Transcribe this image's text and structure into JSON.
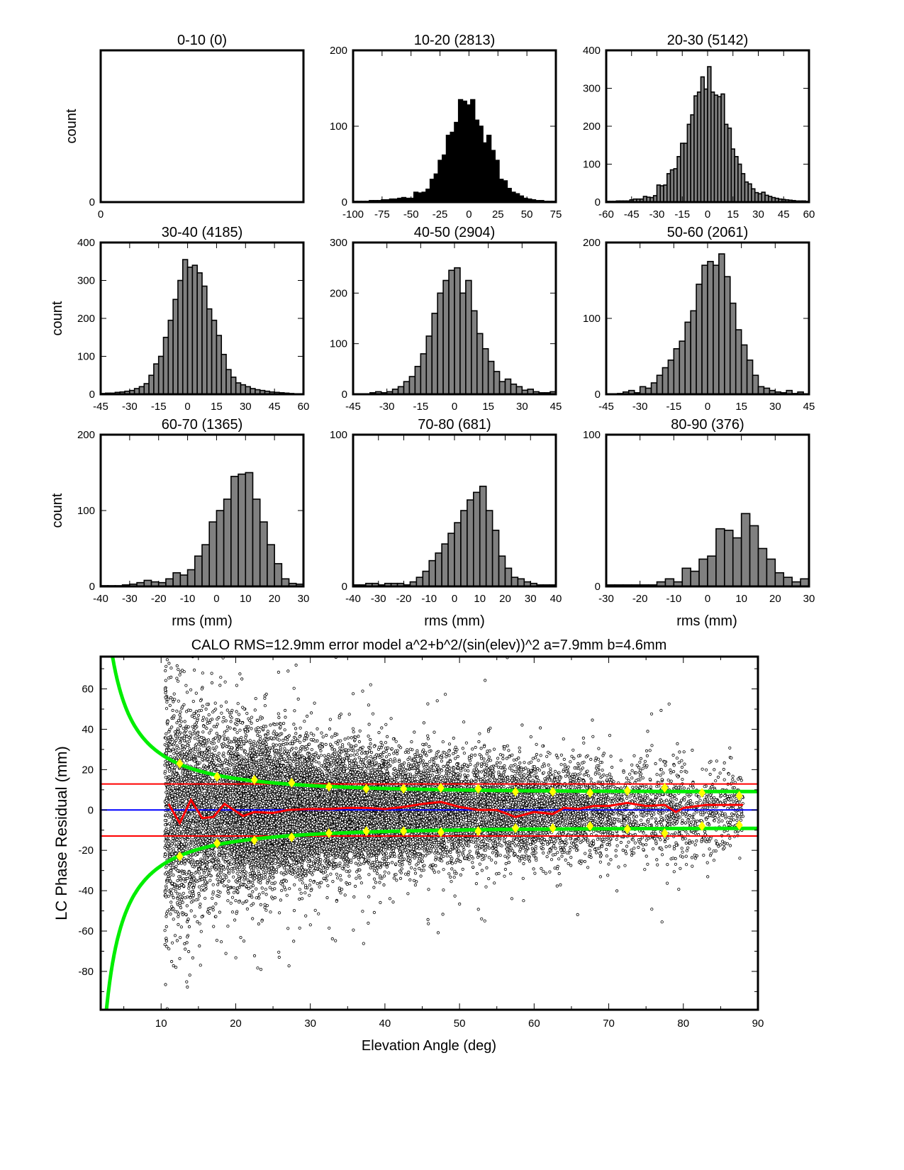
{
  "chart_data": [
    {
      "type": "bar",
      "title": "Histograms of residuals by elevation bin",
      "xlabel": "rms (mm)",
      "ylabel": "count",
      "panels": [
        {
          "title": "0-10 (0)",
          "xlim": [
            0,
            1
          ],
          "ylim": [
            0,
            1
          ],
          "xticks": [
            0
          ],
          "yticks": [
            0
          ],
          "bin_start": 0,
          "bin_width": 1,
          "counts": [],
          "fill": "#808080"
        },
        {
          "title": "10-20 (2813)",
          "xlim": [
            -100,
            75
          ],
          "ylim": [
            0,
            200
          ],
          "xticks": [
            -100,
            -75,
            -50,
            -25,
            0,
            25,
            50,
            75
          ],
          "yticks": [
            0,
            100,
            200
          ],
          "bin_start": -100,
          "bin_width": 3.5,
          "counts": [
            1,
            1,
            1,
            1,
            2,
            2,
            2,
            3,
            3,
            4,
            4,
            5,
            6,
            5,
            5,
            13,
            12,
            13,
            17,
            30,
            37,
            55,
            62,
            88,
            92,
            105,
            135,
            133,
            128,
            135,
            108,
            100,
            78,
            88,
            68,
            55,
            30,
            28,
            18,
            13,
            11,
            8,
            5,
            4,
            3,
            2,
            2,
            1,
            1,
            1
          ],
          "fill": "#000000"
        },
        {
          "title": "20-30 (5142)",
          "xlim": [
            -60,
            60
          ],
          "ylim": [
            0,
            400
          ],
          "xticks": [
            -60,
            -45,
            -30,
            -15,
            0,
            15,
            30,
            45,
            60
          ],
          "yticks": [
            0,
            100,
            200,
            300,
            400
          ],
          "bin_start": -60,
          "bin_width": 2,
          "counts": [
            2,
            2,
            2,
            3,
            3,
            3,
            3,
            6,
            8,
            8,
            8,
            15,
            13,
            12,
            17,
            45,
            43,
            45,
            75,
            85,
            88,
            120,
            155,
            155,
            205,
            230,
            280,
            290,
            330,
            298,
            357,
            290,
            282,
            278,
            285,
            205,
            195,
            140,
            120,
            100,
            75,
            53,
            48,
            35,
            25,
            22,
            26,
            18,
            15,
            12,
            10,
            8,
            7,
            6,
            5,
            4,
            3,
            3,
            3,
            2
          ],
          "fill": "#808080"
        },
        {
          "title": "30-40 (4185)",
          "xlim": [
            -45,
            60
          ],
          "ylim": [
            0,
            400
          ],
          "xticks": [
            -45,
            -30,
            -15,
            0,
            15,
            30,
            45,
            60
          ],
          "yticks": [
            0,
            100,
            200,
            300,
            400
          ],
          "bin_start": -45,
          "bin_width": 2.5,
          "counts": [
            2,
            3,
            3,
            5,
            6,
            8,
            10,
            15,
            20,
            28,
            50,
            80,
            100,
            150,
            195,
            250,
            300,
            355,
            335,
            340,
            320,
            285,
            225,
            195,
            155,
            105,
            65,
            45,
            30,
            25,
            20,
            15,
            12,
            10,
            8,
            6,
            5,
            4,
            3,
            2,
            1,
            1
          ],
          "fill": "#808080"
        },
        {
          "title": "40-50 (2904)",
          "xlim": [
            -45,
            45
          ],
          "ylim": [
            0,
            300
          ],
          "xticks": [
            -45,
            -30,
            -15,
            0,
            15,
            30,
            45
          ],
          "yticks": [
            0,
            100,
            200,
            300
          ],
          "bin_start": -45,
          "bin_width": 2.5,
          "counts": [
            0,
            0,
            0,
            3,
            5,
            3,
            5,
            10,
            15,
            25,
            35,
            55,
            80,
            115,
            160,
            200,
            225,
            245,
            250,
            200,
            225,
            165,
            120,
            90,
            65,
            45,
            25,
            30,
            20,
            15,
            8,
            10,
            5,
            3,
            3,
            5
          ],
          "fill": "#808080"
        },
        {
          "title": "50-60 (2061)",
          "xlim": [
            -45,
            45
          ],
          "ylim": [
            0,
            200
          ],
          "xticks": [
            -45,
            -30,
            -15,
            0,
            15,
            30,
            45
          ],
          "yticks": [
            0,
            100,
            200
          ],
          "bin_start": -45,
          "bin_width": 2.5,
          "counts": [
            0,
            0,
            1,
            3,
            5,
            2,
            10,
            8,
            15,
            25,
            35,
            45,
            60,
            70,
            95,
            110,
            145,
            170,
            175,
            170,
            185,
            155,
            120,
            85,
            65,
            45,
            25,
            10,
            8,
            5,
            3,
            2,
            5,
            1,
            3,
            0
          ],
          "fill": "#808080"
        },
        {
          "title": "60-70 (1365)",
          "xlim": [
            -40,
            30
          ],
          "ylim": [
            0,
            200
          ],
          "xticks": [
            -40,
            -30,
            -20,
            -10,
            0,
            10,
            20,
            30
          ],
          "yticks": [
            0,
            100,
            200
          ],
          "bin_start": -40,
          "bin_width": 2.5,
          "counts": [
            1,
            1,
            1,
            2,
            3,
            5,
            8,
            6,
            5,
            10,
            18,
            15,
            22,
            40,
            55,
            85,
            100,
            115,
            145,
            148,
            150,
            115,
            85,
            55,
            30,
            10,
            4,
            3
          ],
          "fill": "#808080"
        },
        {
          "title": "70-80 (681)",
          "xlim": [
            -40,
            40
          ],
          "ylim": [
            0,
            100
          ],
          "xticks": [
            -40,
            -30,
            -20,
            -10,
            0,
            10,
            20,
            30,
            40
          ],
          "yticks": [
            0,
            100
          ],
          "bin_start": -40,
          "bin_width": 2.5,
          "counts": [
            1,
            1,
            2,
            2,
            1,
            2,
            2,
            2,
            1,
            3,
            6,
            10,
            17,
            22,
            28,
            35,
            42,
            50,
            57,
            62,
            66,
            50,
            37,
            20,
            12,
            6,
            5,
            3,
            2,
            1,
            1,
            1
          ],
          "fill": "#808080"
        },
        {
          "title": "80-90 (376)",
          "xlim": [
            -30,
            30
          ],
          "ylim": [
            0,
            100
          ],
          "xticks": [
            -30,
            -20,
            -10,
            0,
            10,
            20,
            30
          ],
          "yticks": [
            0,
            100
          ],
          "bin_start": -30,
          "bin_width": 2.5,
          "counts": [
            1,
            1,
            1,
            1,
            1,
            1,
            3,
            5,
            3,
            12,
            10,
            18,
            20,
            38,
            37,
            32,
            48,
            40,
            25,
            18,
            9,
            6,
            3,
            5
          ],
          "fill": "#808080"
        }
      ]
    },
    {
      "type": "scatter",
      "title": "CALO RMS=12.9mm error model a^2+b^2/(sin(elev))^2 a=7.9mm b=4.6mm",
      "xlabel": "Elevation Angle (deg)",
      "ylabel": "LC Phase Residual (mm)",
      "xlim": [
        1.9,
        90
      ],
      "ylim": [
        -99,
        76
      ],
      "xticks": [
        10,
        20,
        30,
        40,
        50,
        60,
        70,
        80,
        90
      ],
      "yticks": [
        -80,
        -60,
        -40,
        -20,
        0,
        20,
        40,
        60
      ],
      "rms": 12.9,
      "model_a": 7.9,
      "model_b": 4.6,
      "scatter_bins": [
        {
          "elev": [
            10.5,
            20
          ],
          "n": 2813
        },
        {
          "elev": [
            20,
            30
          ],
          "n": 5142
        },
        {
          "elev": [
            30,
            40
          ],
          "n": 4185
        },
        {
          "elev": [
            40,
            50
          ],
          "n": 2904
        },
        {
          "elev": [
            50,
            60
          ],
          "n": 2061
        },
        {
          "elev": [
            60,
            70
          ],
          "n": 1365
        },
        {
          "elev": [
            70,
            80
          ],
          "n": 681
        },
        {
          "elev": [
            80,
            88
          ],
          "n": 376
        }
      ],
      "bin_rms": {
        "x": [
          12.5,
          17.5,
          22.5,
          27.5,
          32.5,
          37.5,
          42.5,
          47.5,
          52.5,
          57.5,
          62.5,
          67.5,
          72.5,
          77.5,
          82.5,
          87.5
        ],
        "upper": [
          23,
          16.5,
          15,
          13.5,
          11.5,
          10.5,
          10.5,
          11,
          10.5,
          9,
          9,
          8.5,
          9.5,
          11,
          8.5,
          7
        ],
        "lower": [
          -23,
          -16.5,
          -15,
          -13.5,
          -11.5,
          -10.5,
          -10.5,
          -11,
          -10.5,
          -9,
          -9,
          -8,
          -9.5,
          -11.5,
          -8,
          -7.5
        ]
      },
      "mean_line": {
        "x": [
          11,
          12.5,
          14,
          15.5,
          17,
          18.5,
          21,
          22.5,
          25,
          27,
          30,
          32.5,
          35,
          37.5,
          40,
          42.5,
          45,
          47.5,
          50,
          52.5,
          55,
          57.5,
          60,
          62.5,
          64,
          66,
          68,
          70,
          72.5,
          75,
          77.5,
          79,
          80,
          83,
          85,
          88
        ],
        "y": [
          3,
          -6.5,
          5,
          -4,
          -3.5,
          3,
          -3,
          -1,
          -1.5,
          0,
          0.5,
          0.5,
          1,
          1,
          0.5,
          1.5,
          3,
          4,
          1.5,
          0,
          0,
          -3.5,
          -1,
          -2,
          1,
          0.5,
          2,
          2,
          3.5,
          2,
          2.5,
          -1,
          1,
          2.5,
          2.5,
          2.5
        ]
      },
      "colors": {
        "points": "#000000",
        "model": "#00ee00",
        "rms_lines": "#ff0000",
        "mean": "#ff0000",
        "zero": "#0000ff",
        "bin_rms": "#ffff00"
      }
    }
  ]
}
